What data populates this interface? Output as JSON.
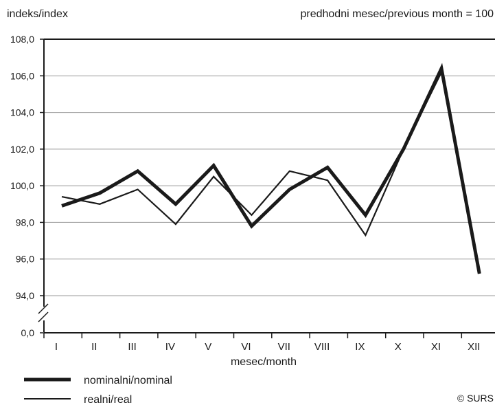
{
  "chart_data": {
    "type": "line",
    "ylabel": "indeks/index",
    "subtitle": "predhodni mesec/previous month = 100",
    "xlabel": "mesec/month",
    "categories": [
      "I",
      "II",
      "III",
      "IV",
      "V",
      "VI",
      "VII",
      "VIII",
      "IX",
      "X",
      "XI",
      "XII"
    ],
    "y_ticks": [
      "108,0",
      "106,0",
      "104,0",
      "102,0",
      "100,0",
      "98,0",
      "96,0",
      "94,0",
      "0,0"
    ],
    "ylim": [
      94,
      108
    ],
    "axis_break": true,
    "grid": true,
    "legend_position": "bottom-left",
    "series": [
      {
        "name": "nominalni/nominal",
        "style": "thick",
        "values": [
          98.9,
          99.6,
          100.8,
          99.0,
          101.1,
          97.8,
          99.8,
          101.0,
          98.4,
          102.0,
          106.4,
          95.2
        ]
      },
      {
        "name": "realni/real",
        "style": "thin",
        "values": [
          99.4,
          99.0,
          99.8,
          97.9,
          100.5,
          98.4,
          100.8,
          100.3,
          97.3,
          102.0,
          106.2,
          95.2
        ]
      }
    ],
    "colors": {
      "line": "#1a1a1a",
      "grid": "#9a9a9a"
    },
    "credit": "© SURS"
  }
}
